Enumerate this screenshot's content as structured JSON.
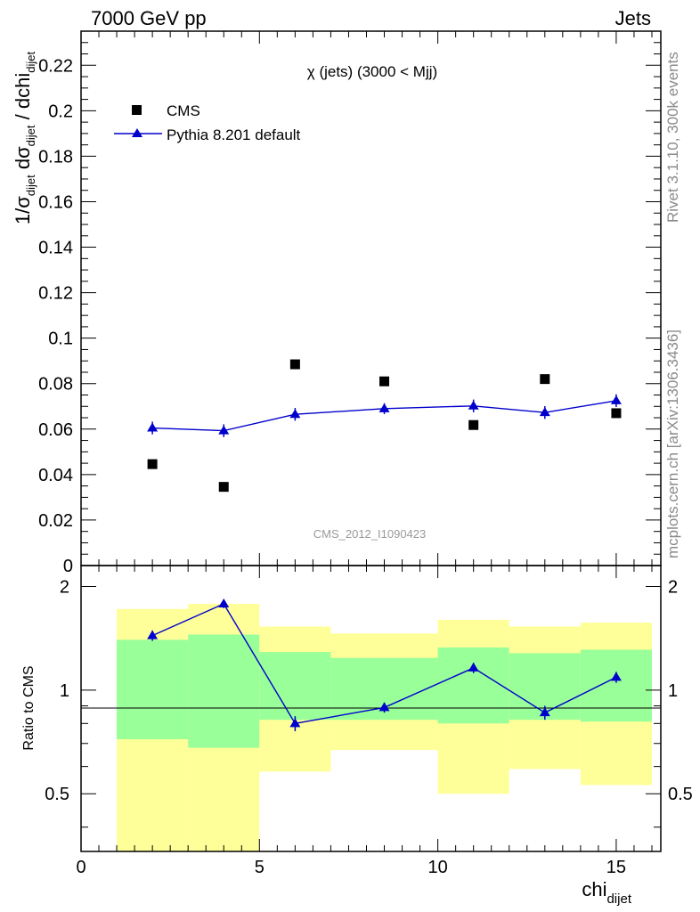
{
  "header": {
    "left": "7000 GeV pp",
    "right": "Jets"
  },
  "side_labels": {
    "rivet": "Rivet 3.1.10,  300k events",
    "mcplots": "mcplots.cern.ch [arXiv:1306.3436]"
  },
  "colors": {
    "mc": "#0000cc",
    "data": "#000000",
    "band_inner": "#99ff99",
    "band_outer": "#ffff99"
  },
  "chart_data": {
    "type": "scatter",
    "title": "χ (jets) (3000 < Mjj)",
    "watermark": "CMS_2012_I1090423",
    "xlabel": "chi",
    "xlabel_sub": "dijet",
    "xlim": [
      0,
      16.25
    ],
    "xticks": [
      "0",
      "5",
      "10",
      "15"
    ],
    "ylabel_main": "1/σ_dijet dσ_dijet / dchi_dijet",
    "ylim_main": [
      0,
      0.235
    ],
    "yticks_main": [
      "0",
      "0.02",
      "0.04",
      "0.06",
      "0.08",
      "0.1",
      "0.12",
      "0.14",
      "0.16",
      "0.18",
      "0.2",
      "0.22"
    ],
    "ylabel_ratio": "Ratio to CMS",
    "ylim_ratio": [
      0.34,
      2.3
    ],
    "yticks_ratio": [
      "0.5",
      "1",
      "2"
    ],
    "legend": {
      "position": "top-left",
      "entries": [
        "CMS",
        "Pythia 8.201 default"
      ]
    },
    "bins": [
      [
        1,
        3
      ],
      [
        3,
        5
      ],
      [
        5,
        7
      ],
      [
        7,
        10
      ],
      [
        10,
        12
      ],
      [
        12,
        14
      ],
      [
        14,
        16
      ]
    ],
    "series": [
      {
        "name": "CMS",
        "marker": "square",
        "x": [
          2,
          4,
          6,
          8.5,
          11,
          13,
          15
        ],
        "y": [
          0.0446,
          0.0346,
          0.0885,
          0.081,
          0.0618,
          0.082,
          0.067
        ]
      },
      {
        "name": "Pythia 8.201 default",
        "marker": "triangle",
        "x": [
          2,
          4,
          6,
          8.5,
          11,
          13,
          15
        ],
        "y": [
          0.0605,
          0.0593,
          0.0665,
          0.069,
          0.0702,
          0.0673,
          0.0725
        ],
        "err": [
          0.0028,
          0.0028,
          0.0028,
          0.0024,
          0.0028,
          0.0028,
          0.0028
        ]
      }
    ],
    "ratio": {
      "x": [
        2,
        4,
        6,
        8.5,
        11,
        13,
        15
      ],
      "y": [
        1.44,
        1.78,
        0.8,
        0.89,
        1.16,
        0.86,
        1.09
      ],
      "err": [
        0.05,
        0.05,
        0.04,
        0.03,
        0.04,
        0.04,
        0.04
      ],
      "band_inner": [
        [
          0.72,
          1.4
        ],
        [
          0.68,
          1.45
        ],
        [
          0.82,
          1.29
        ],
        [
          0.82,
          1.24
        ],
        [
          0.8,
          1.33
        ],
        [
          0.82,
          1.28
        ],
        [
          0.81,
          1.31
        ]
      ],
      "band_outer": [
        [
          0.3,
          1.72
        ],
        [
          0.3,
          1.78
        ],
        [
          0.58,
          1.53
        ],
        [
          0.67,
          1.46
        ],
        [
          0.5,
          1.6
        ],
        [
          0.59,
          1.53
        ],
        [
          0.53,
          1.57
        ]
      ]
    }
  }
}
